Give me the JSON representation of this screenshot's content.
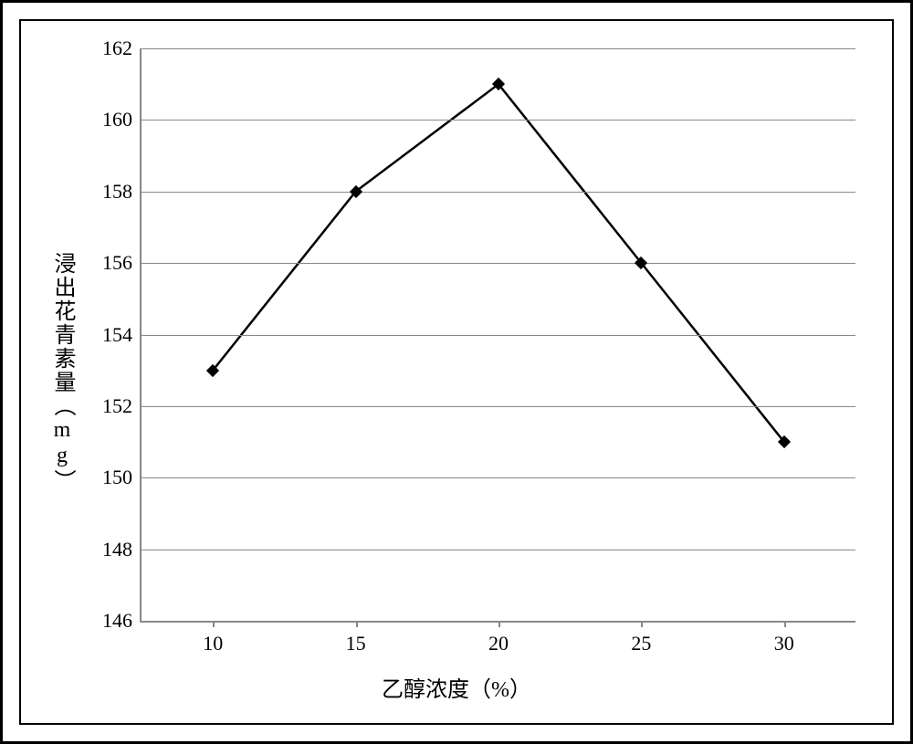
{
  "chart": {
    "type": "line",
    "x_categories": [
      "10",
      "15",
      "20",
      "25",
      "30"
    ],
    "y_values": [
      153,
      158,
      161,
      156,
      151
    ],
    "y_axis": {
      "min": 146,
      "max": 162,
      "tick_step": 2,
      "ticks": [
        146,
        148,
        150,
        152,
        154,
        156,
        158,
        160,
        162
      ],
      "title": "浸出花青素量（mg）"
    },
    "x_axis": {
      "title": "乙醇浓度（%）"
    },
    "style": {
      "background_color": "#ffffff",
      "grid_color": "#888888",
      "axis_color": "#888888",
      "line_color": "#000000",
      "line_width": 2.5,
      "marker_style": "diamond",
      "marker_size": 10,
      "marker_color": "#000000",
      "tick_font_size": 22,
      "title_font_size": 24,
      "outer_border_color": "#000000",
      "outer_border_width": 3,
      "inner_border_color": "#000000",
      "inner_border_width": 2
    }
  }
}
